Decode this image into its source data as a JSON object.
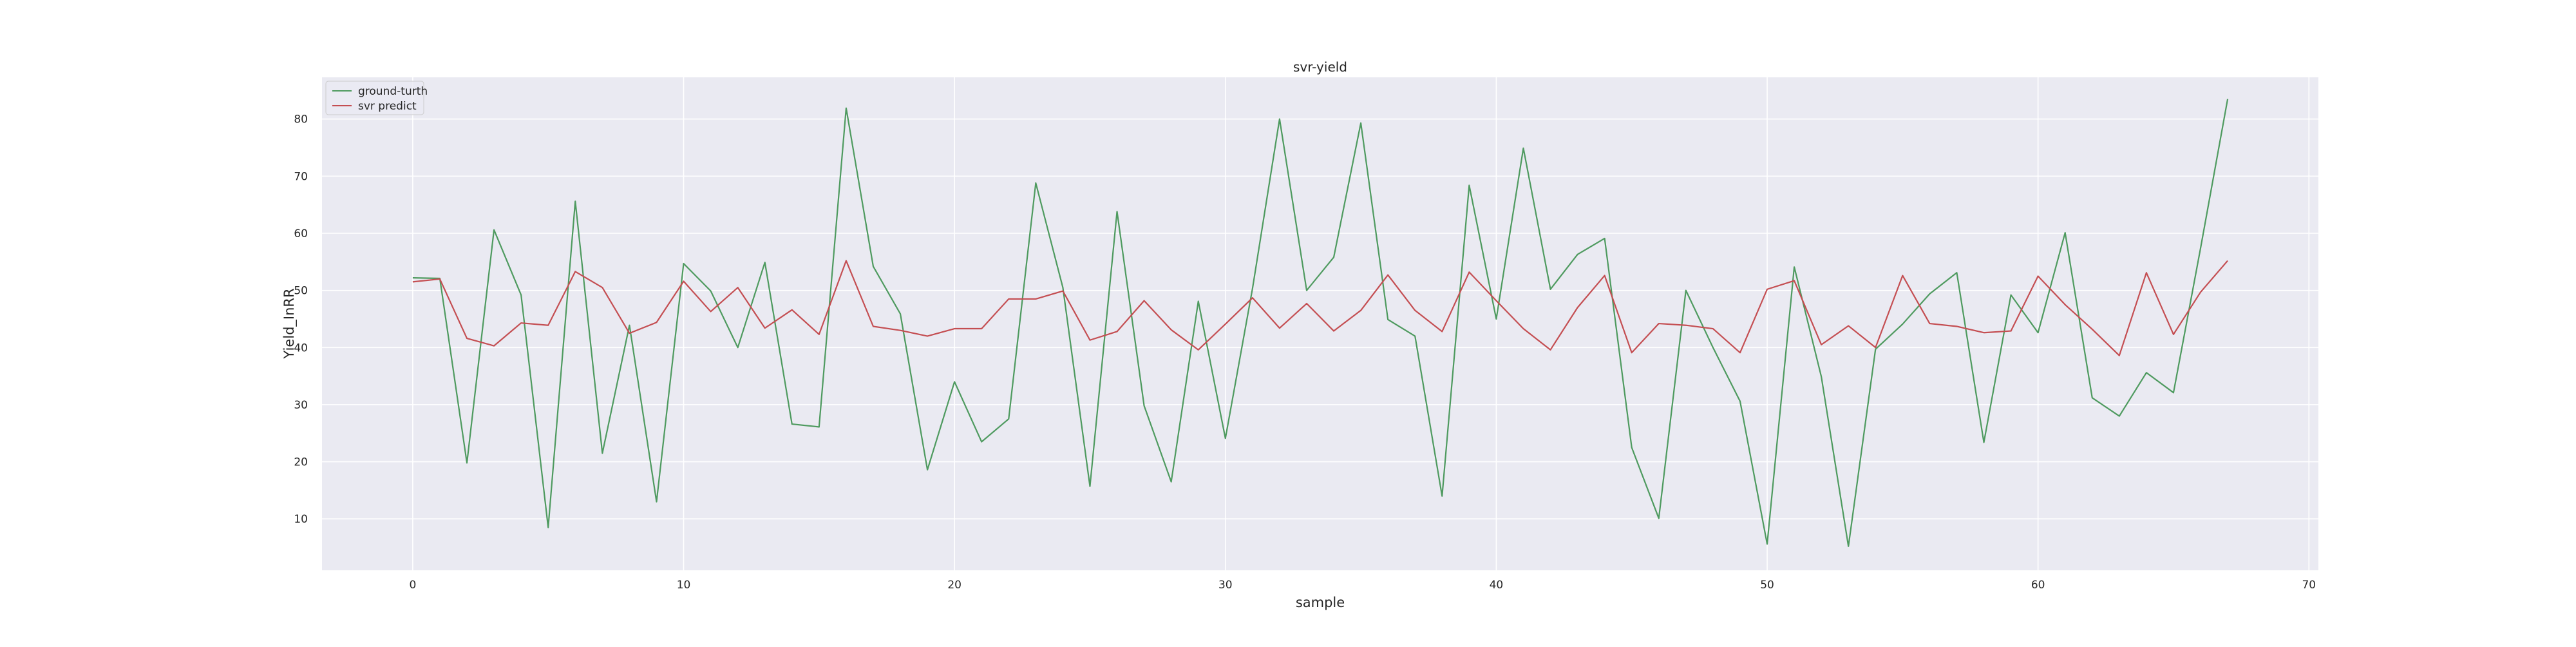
{
  "chart_data": {
    "type": "line",
    "title": "svr-yield",
    "xlabel": "sample",
    "ylabel": "Yield_InRR",
    "xlim": [
      -3.35,
      70.35
    ],
    "ylim": [
      1.0,
      87.3
    ],
    "xticks": [
      0,
      10,
      20,
      30,
      40,
      50,
      60,
      70
    ],
    "yticks": [
      10,
      20,
      30,
      40,
      50,
      60,
      70,
      80
    ],
    "grid": true,
    "legend_position": "upper left",
    "background": "#eaeaf2",
    "series": [
      {
        "name": "ground-turth",
        "color": "#4e9a5f",
        "x": [
          0,
          1,
          2,
          3,
          4,
          5,
          6,
          7,
          8,
          9,
          10,
          11,
          12,
          13,
          14,
          15,
          16,
          17,
          18,
          19,
          20,
          21,
          22,
          23,
          24,
          25,
          26,
          27,
          28,
          29,
          30,
          31,
          32,
          33,
          34,
          35,
          36,
          37,
          38,
          39,
          40,
          41,
          42,
          43,
          44,
          45,
          46,
          47,
          48,
          49,
          50,
          51,
          52,
          53,
          54,
          55,
          56,
          57,
          58,
          59,
          60,
          61,
          62,
          63,
          64,
          65,
          66,
          67
        ],
        "y": [
          52.2,
          52.1,
          19.8,
          60.6,
          49.2,
          8.5,
          65.6,
          21.5,
          43.9,
          13.0,
          54.7,
          49.9,
          40.0,
          54.9,
          26.6,
          26.1,
          81.9,
          54.2,
          45.9,
          18.6,
          34.0,
          23.5,
          27.5,
          68.8,
          50.5,
          15.7,
          63.8,
          29.8,
          16.5,
          48.1,
          24.1,
          50.3,
          80.0,
          50.0,
          55.8,
          79.3,
          44.9,
          42.0,
          14.0,
          68.4,
          45.0,
          74.9,
          50.2,
          56.3,
          59.1,
          22.5,
          10.1,
          50.0,
          40.0,
          30.6,
          5.6,
          54.1,
          34.9,
          5.2,
          39.7,
          44.1,
          49.4,
          53.1,
          23.4,
          49.2,
          42.6,
          60.1,
          31.2,
          28.0,
          35.6,
          32.1,
          57.4,
          83.5
        ]
      },
      {
        "name": "svr predict",
        "color": "#c44e52",
        "x": [
          0,
          1,
          2,
          3,
          4,
          5,
          6,
          7,
          8,
          9,
          10,
          11,
          12,
          13,
          14,
          15,
          16,
          17,
          18,
          19,
          20,
          21,
          22,
          23,
          24,
          25,
          26,
          27,
          28,
          29,
          30,
          31,
          32,
          33,
          34,
          35,
          36,
          37,
          38,
          39,
          40,
          41,
          42,
          43,
          44,
          45,
          46,
          47,
          48,
          49,
          50,
          51,
          52,
          53,
          54,
          55,
          56,
          57,
          58,
          59,
          60,
          61,
          62,
          63,
          64,
          65,
          66,
          67
        ],
        "y": [
          51.5,
          52.0,
          41.6,
          40.3,
          44.3,
          43.9,
          53.3,
          50.5,
          42.5,
          44.4,
          51.6,
          46.3,
          50.5,
          43.4,
          46.6,
          42.3,
          55.2,
          43.7,
          43.0,
          42.0,
          43.3,
          43.3,
          48.5,
          48.5,
          49.9,
          41.3,
          42.8,
          48.2,
          43.1,
          39.6,
          44.1,
          48.7,
          43.4,
          47.7,
          42.9,
          46.5,
          52.7,
          46.5,
          42.8,
          53.2,
          48.2,
          43.3,
          39.6,
          47.0,
          52.6,
          39.1,
          44.2,
          43.9,
          43.3,
          39.1,
          50.2,
          51.7,
          40.5,
          43.8,
          40.0,
          52.6,
          44.2,
          43.7,
          42.6,
          42.9,
          52.5,
          47.5,
          43.2,
          38.6,
          53.1,
          42.3,
          49.7,
          55.2
        ]
      }
    ]
  }
}
